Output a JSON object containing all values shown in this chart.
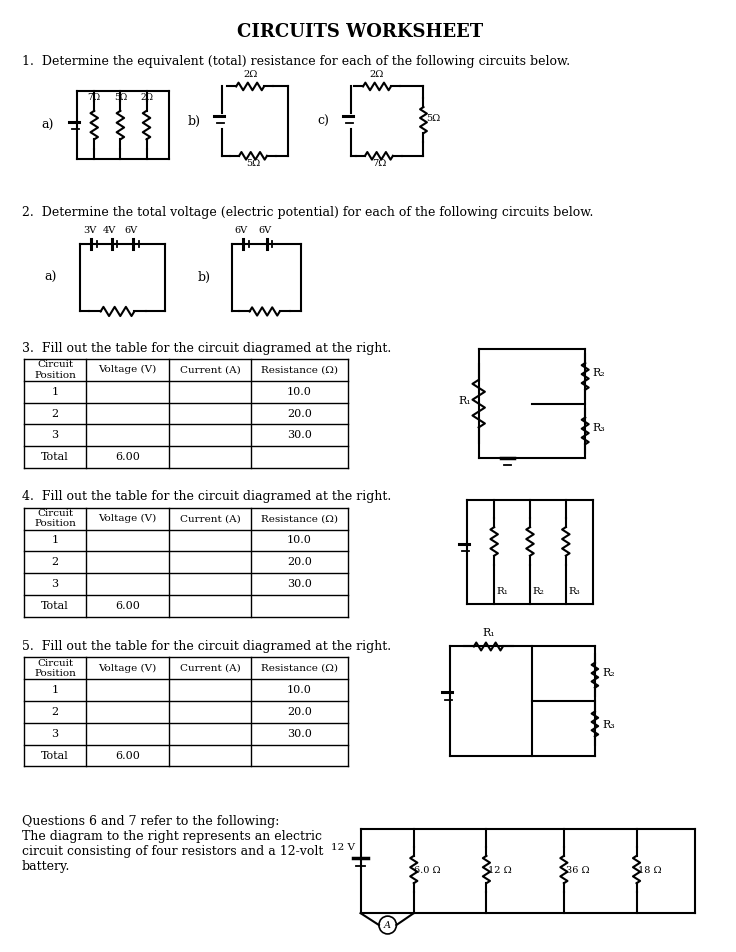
{
  "title": "CIRCUITS WORKSHEET",
  "bg_color": "#ffffff",
  "text_color": "#000000",
  "q1_text": "1.  Determine the equivalent (total) resistance for each of the following circuits below.",
  "q2_text": "2.  Determine the total voltage (electric potential) for each of the following circuits below.",
  "q3_text": "3.  Fill out the table for the circuit diagramed at the right.",
  "q4_text": "4.  Fill out the table for the circuit diagramed at the right.",
  "q5_text": "5.  Fill out the table for the circuit diagramed at the right.",
  "q6_text": "Questions 6 and 7 refer to the following:\nThe diagram to the right represents an electric\ncircuit consisting of four resistors and a 12-volt\nbattery.",
  "table_headers": [
    "Circuit\nPosition",
    "Voltage (V)",
    "Current (A)",
    "Resistance (Ω)"
  ],
  "table3_rows": [
    [
      "1",
      "",
      "",
      "10.0"
    ],
    [
      "2",
      "",
      "",
      "20.0"
    ],
    [
      "3",
      "",
      "",
      "30.0"
    ],
    [
      "Total",
      "6.00",
      "",
      ""
    ]
  ],
  "table4_rows": [
    [
      "1",
      "",
      "",
      "10.0"
    ],
    [
      "2",
      "",
      "",
      "20.0"
    ],
    [
      "3",
      "",
      "",
      "30.0"
    ],
    [
      "Total",
      "6.00",
      "",
      ""
    ]
  ],
  "table5_rows": [
    [
      "1",
      "",
      "",
      "10.0"
    ],
    [
      "2",
      "",
      "",
      "20.0"
    ],
    [
      "3",
      "",
      "",
      "30.0"
    ],
    [
      "Total",
      "6.00",
      "",
      ""
    ]
  ]
}
